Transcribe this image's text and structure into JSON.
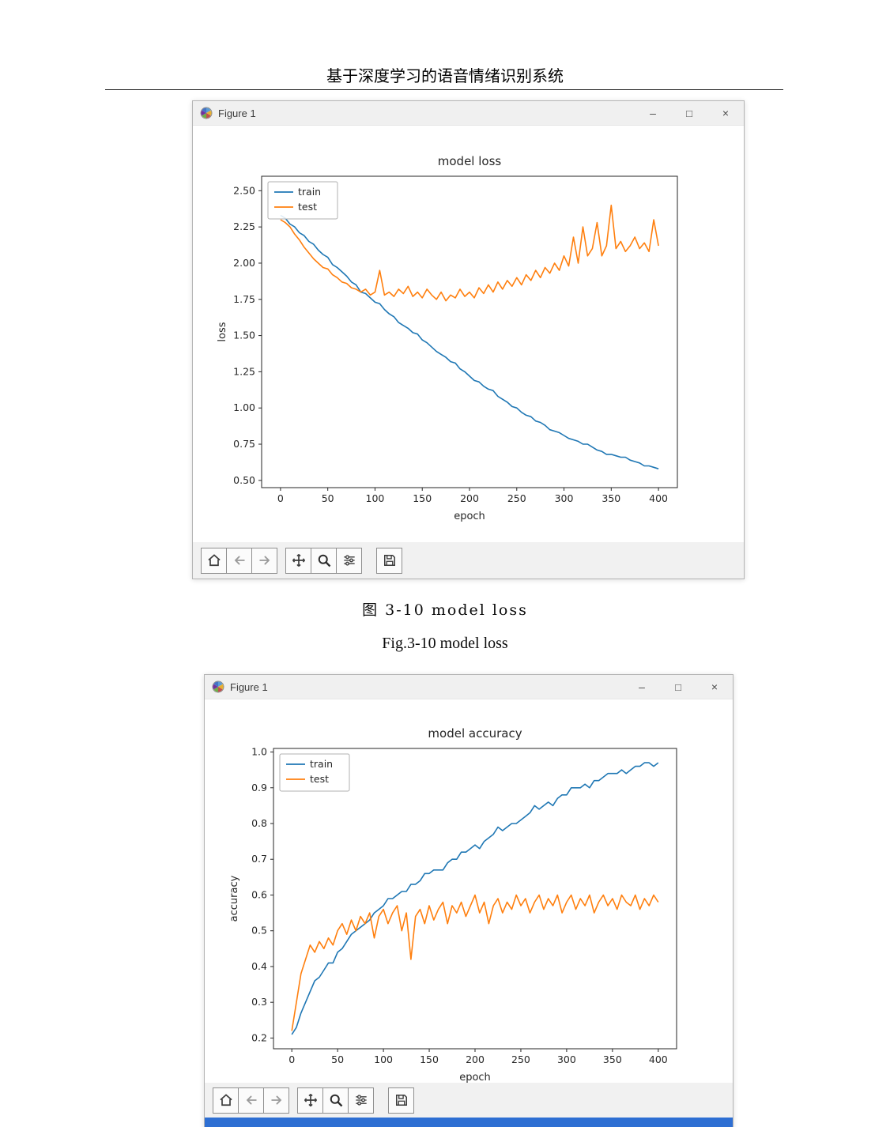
{
  "page": {
    "header": "基于深度学习的语音情绪识别系统",
    "caption_cn": "图 3-10 model loss",
    "caption_en": "Fig.3-10 model loss"
  },
  "window": {
    "title": "Figure 1",
    "minimize_glyph": "–",
    "maximize_glyph": "□",
    "close_glyph": "×"
  },
  "toolbar": {
    "buttons": [
      "home",
      "back",
      "forward",
      "pan",
      "zoom",
      "configure-subplots",
      "save"
    ]
  },
  "colors": {
    "train": "#1f77b4",
    "test": "#ff7f0e",
    "window_bottom_strip": "#2e6fd3",
    "titlebar_bg": "#f0f0f0"
  },
  "chart_data": [
    {
      "type": "line",
      "title": "model loss",
      "xlabel": "epoch",
      "ylabel": "loss",
      "xlim": [
        -20,
        420
      ],
      "ylim": [
        0.45,
        2.6
      ],
      "xticks": [
        0,
        50,
        100,
        150,
        200,
        250,
        300,
        350,
        400
      ],
      "xtick_labels": [
        "0",
        "50",
        "100",
        "150",
        "200",
        "250",
        "300",
        "350",
        "400"
      ],
      "yticks": [
        0.5,
        0.75,
        1.0,
        1.25,
        1.5,
        1.75,
        2.0,
        2.25,
        2.5
      ],
      "ytick_labels": [
        "0.50",
        "0.75",
        "1.00",
        "1.25",
        "1.50",
        "1.75",
        "2.00",
        "2.25",
        "2.50"
      ],
      "x_step": 5,
      "grid": false,
      "legend_position": "upper left",
      "series": [
        {
          "name": "train",
          "color": "#1f77b4",
          "values": [
            2.33,
            2.31,
            2.27,
            2.25,
            2.21,
            2.19,
            2.15,
            2.13,
            2.09,
            2.06,
            2.04,
            1.99,
            1.97,
            1.94,
            1.91,
            1.87,
            1.85,
            1.8,
            1.79,
            1.76,
            1.73,
            1.72,
            1.68,
            1.65,
            1.63,
            1.59,
            1.57,
            1.55,
            1.52,
            1.51,
            1.47,
            1.45,
            1.42,
            1.39,
            1.37,
            1.35,
            1.32,
            1.31,
            1.27,
            1.25,
            1.22,
            1.19,
            1.18,
            1.15,
            1.13,
            1.12,
            1.08,
            1.06,
            1.04,
            1.01,
            1.0,
            0.97,
            0.95,
            0.94,
            0.91,
            0.9,
            0.88,
            0.85,
            0.84,
            0.83,
            0.81,
            0.79,
            0.78,
            0.77,
            0.75,
            0.75,
            0.73,
            0.71,
            0.7,
            0.68,
            0.68,
            0.67,
            0.66,
            0.66,
            0.64,
            0.63,
            0.62,
            0.6,
            0.6,
            0.59,
            0.58
          ]
        },
        {
          "name": "test",
          "color": "#ff7f0e",
          "values": [
            2.3,
            2.28,
            2.25,
            2.2,
            2.16,
            2.11,
            2.07,
            2.03,
            2.0,
            1.97,
            1.96,
            1.92,
            1.9,
            1.87,
            1.86,
            1.83,
            1.82,
            1.8,
            1.82,
            1.78,
            1.8,
            1.95,
            1.78,
            1.8,
            1.77,
            1.82,
            1.79,
            1.84,
            1.77,
            1.8,
            1.76,
            1.82,
            1.78,
            1.75,
            1.8,
            1.74,
            1.78,
            1.76,
            1.82,
            1.77,
            1.8,
            1.76,
            1.83,
            1.79,
            1.85,
            1.8,
            1.87,
            1.82,
            1.88,
            1.84,
            1.9,
            1.85,
            1.92,
            1.88,
            1.95,
            1.9,
            1.97,
            1.93,
            2.0,
            1.95,
            2.05,
            1.98,
            2.18,
            2.0,
            2.25,
            2.05,
            2.1,
            2.28,
            2.05,
            2.12,
            2.4,
            2.1,
            2.15,
            2.08,
            2.12,
            2.18,
            2.1,
            2.14,
            2.08,
            2.3,
            2.12
          ]
        }
      ]
    },
    {
      "type": "line",
      "title": "model accuracy",
      "xlabel": "epoch",
      "ylabel": "accuracy",
      "xlim": [
        -20,
        420
      ],
      "ylim": [
        0.17,
        1.01
      ],
      "xticks": [
        0,
        50,
        100,
        150,
        200,
        250,
        300,
        350,
        400
      ],
      "xtick_labels": [
        "0",
        "50",
        "100",
        "150",
        "200",
        "250",
        "300",
        "350",
        "400"
      ],
      "yticks": [
        0.2,
        0.3,
        0.4,
        0.5,
        0.6,
        0.7,
        0.8,
        0.9,
        1.0
      ],
      "ytick_labels": [
        "0.2",
        "0.3",
        "0.4",
        "0.5",
        "0.6",
        "0.7",
        "0.8",
        "0.9",
        "1.0"
      ],
      "x_step": 5,
      "grid": false,
      "legend_position": "upper left",
      "series": [
        {
          "name": "train",
          "color": "#1f77b4",
          "values": [
            0.21,
            0.23,
            0.27,
            0.3,
            0.33,
            0.36,
            0.37,
            0.39,
            0.41,
            0.41,
            0.44,
            0.45,
            0.47,
            0.49,
            0.5,
            0.51,
            0.52,
            0.53,
            0.55,
            0.56,
            0.57,
            0.59,
            0.59,
            0.6,
            0.61,
            0.61,
            0.63,
            0.63,
            0.64,
            0.66,
            0.66,
            0.67,
            0.67,
            0.67,
            0.69,
            0.7,
            0.7,
            0.72,
            0.72,
            0.73,
            0.74,
            0.73,
            0.75,
            0.76,
            0.77,
            0.79,
            0.78,
            0.79,
            0.8,
            0.8,
            0.81,
            0.82,
            0.83,
            0.85,
            0.84,
            0.85,
            0.86,
            0.85,
            0.87,
            0.88,
            0.88,
            0.9,
            0.9,
            0.9,
            0.91,
            0.9,
            0.92,
            0.92,
            0.93,
            0.94,
            0.94,
            0.94,
            0.95,
            0.94,
            0.95,
            0.96,
            0.96,
            0.97,
            0.97,
            0.96,
            0.97
          ]
        },
        {
          "name": "test",
          "color": "#ff7f0e",
          "values": [
            0.22,
            0.3,
            0.38,
            0.42,
            0.46,
            0.44,
            0.47,
            0.45,
            0.48,
            0.46,
            0.5,
            0.52,
            0.49,
            0.53,
            0.5,
            0.54,
            0.52,
            0.55,
            0.48,
            0.54,
            0.56,
            0.52,
            0.55,
            0.57,
            0.5,
            0.55,
            0.42,
            0.54,
            0.56,
            0.52,
            0.57,
            0.53,
            0.56,
            0.58,
            0.52,
            0.57,
            0.55,
            0.58,
            0.54,
            0.57,
            0.6,
            0.55,
            0.58,
            0.52,
            0.57,
            0.59,
            0.55,
            0.58,
            0.56,
            0.6,
            0.57,
            0.59,
            0.55,
            0.58,
            0.6,
            0.56,
            0.59,
            0.57,
            0.6,
            0.55,
            0.58,
            0.6,
            0.56,
            0.59,
            0.57,
            0.6,
            0.55,
            0.58,
            0.6,
            0.57,
            0.59,
            0.56,
            0.6,
            0.58,
            0.57,
            0.6,
            0.56,
            0.59,
            0.57,
            0.6,
            0.58
          ]
        }
      ]
    }
  ]
}
